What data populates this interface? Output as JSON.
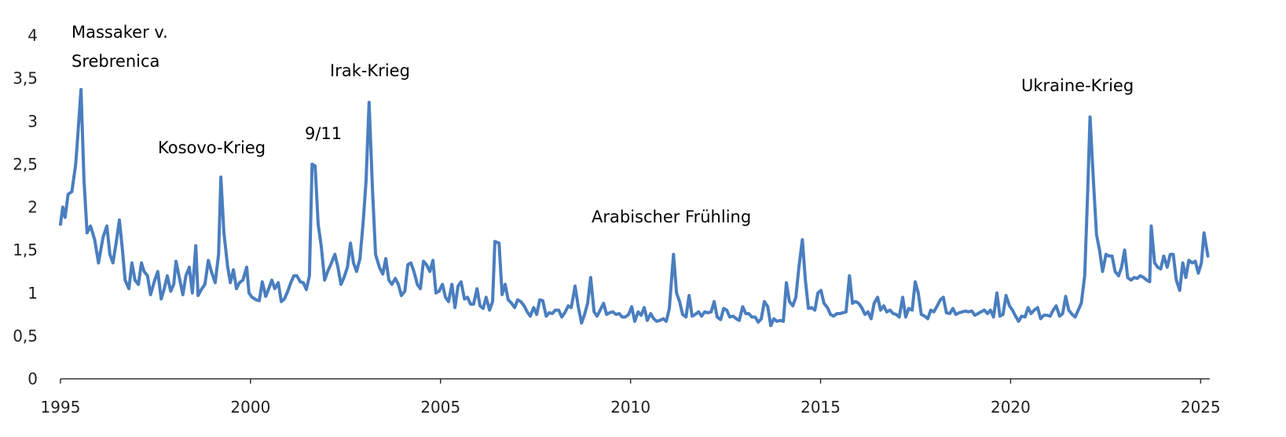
{
  "chart_data": {
    "type": "line",
    "color": "#4a7ebf",
    "annotations": [
      "Massaker v.",
      "Srebrenica",
      "Kosovo-Krieg",
      "9/11",
      "Irak-Krieg",
      "Arabischer Frühling",
      "Ukraine-Krieg"
    ],
    "xlim": [
      1995,
      2025.2
    ],
    "xticks": [
      1995,
      2000,
      2005,
      2010,
      2015,
      2020,
      2025
    ],
    "ylim": [
      0,
      4
    ],
    "yticks": [
      0,
      {
        "value": 0.5,
        "label": "0,5"
      },
      1,
      {
        "value": 1.5,
        "label": "1,5"
      },
      2,
      {
        "value": 2.5,
        "label": "2,5"
      },
      3,
      {
        "value": 3.5,
        "label": "3,5"
      },
      4
    ],
    "x": [
      1995.0,
      1995.06,
      1995.12,
      1995.2,
      1995.3,
      1995.4,
      1995.45,
      1995.54,
      1995.62,
      1995.7,
      1995.79,
      1995.9,
      1996.0,
      1996.12,
      1996.22,
      1996.3,
      1996.38,
      1996.47,
      1996.55,
      1996.63,
      1996.7,
      1996.8,
      1996.88,
      1996.96,
      1997.05,
      1997.13,
      1997.2,
      1997.29,
      1997.37,
      1997.48,
      1997.56,
      1997.65,
      1997.73,
      1997.81,
      1997.9,
      1997.98,
      1998.04,
      1998.14,
      1998.22,
      1998.3,
      1998.39,
      1998.47,
      1998.56,
      1998.62,
      1998.72,
      1998.8,
      1998.89,
      1998.97,
      1999.07,
      1999.16,
      1999.22,
      1999.3,
      1999.4,
      1999.47,
      1999.55,
      1999.63,
      1999.71,
      1999.8,
      1999.9,
      1999.96,
      2000.04,
      2000.15,
      2000.23,
      2000.31,
      2000.4,
      2000.48,
      2000.56,
      2000.64,
      2000.73,
      2000.81,
      2000.89,
      2000.98,
      2001.06,
      2001.14,
      2001.22,
      2001.31,
      2001.39,
      2001.47,
      2001.55,
      2001.62,
      2001.7,
      2001.78,
      2001.86,
      2001.95,
      2002.03,
      2002.13,
      2002.22,
      2002.3,
      2002.38,
      2002.46,
      2002.55,
      2002.63,
      2002.71,
      2002.79,
      2002.88,
      2002.96,
      2003.04,
      2003.12,
      2003.21,
      2003.29,
      2003.39,
      2003.48,
      2003.56,
      2003.64,
      2003.72,
      2003.81,
      2003.89,
      2003.97,
      2004.06,
      2004.14,
      2004.22,
      2004.3,
      2004.39,
      2004.47,
      2004.55,
      2004.63,
      2004.72,
      2004.8,
      2004.88,
      2004.96,
      2005.05,
      2005.13,
      2005.21,
      2005.3,
      2005.38,
      2005.46,
      2005.54,
      2005.63,
      2005.71,
      2005.79,
      2005.87,
      2005.96,
      2006.04,
      2006.12,
      2006.2,
      2006.29,
      2006.37,
      2006.43,
      2006.54,
      2006.62,
      2006.7,
      2006.78,
      2006.87,
      2006.95,
      2007.03,
      2007.11,
      2007.2,
      2007.28,
      2007.36,
      2007.45,
      2007.53,
      2007.61,
      2007.69,
      2007.78,
      2007.86,
      2007.94,
      2008.02,
      2008.11,
      2008.19,
      2008.27,
      2008.36,
      2008.44,
      2008.54,
      2008.62,
      2008.71,
      2008.79,
      2008.87,
      2008.95,
      2009.04,
      2009.12,
      2009.2,
      2009.29,
      2009.37,
      2009.45,
      2009.53,
      2009.62,
      2009.7,
      2009.78,
      2009.86,
      2009.95,
      2010.03,
      2010.11,
      2010.2,
      2010.28,
      2010.36,
      2010.44,
      2010.53,
      2010.61,
      2010.69,
      2010.77,
      2010.86,
      2010.94,
      2011.02,
      2011.13,
      2011.21,
      2011.29,
      2011.37,
      2011.46,
      2011.54,
      2011.62,
      2011.7,
      2011.79,
      2011.87,
      2011.95,
      2012.04,
      2012.12,
      2012.2,
      2012.28,
      2012.37,
      2012.45,
      2012.53,
      2012.61,
      2012.7,
      2012.78,
      2012.86,
      2012.95,
      2013.03,
      2013.11,
      2013.19,
      2013.28,
      2013.36,
      2013.44,
      2013.52,
      2013.61,
      2013.69,
      2013.77,
      2013.85,
      2013.94,
      2014.02,
      2014.1,
      2014.18,
      2014.27,
      2014.35,
      2014.43,
      2014.52,
      2014.6,
      2014.68,
      2014.76,
      2014.85,
      2014.93,
      2015.01,
      2015.09,
      2015.18,
      2015.26,
      2015.34,
      2015.43,
      2015.51,
      2015.59,
      2015.67,
      2015.76,
      2015.84,
      2015.92,
      2016.0,
      2016.08,
      2016.17,
      2016.25,
      2016.33,
      2016.41,
      2016.5,
      2016.58,
      2016.66,
      2016.74,
      2016.83,
      2016.91,
      2016.99,
      2017.07,
      2017.16,
      2017.24,
      2017.32,
      2017.41,
      2017.49,
      2017.57,
      2017.65,
      2017.74,
      2017.82,
      2017.9,
      2017.98,
      2018.07,
      2018.15,
      2018.23,
      2018.31,
      2018.4,
      2018.48,
      2018.56,
      2018.65,
      2018.73,
      2018.81,
      2018.89,
      2018.98,
      2019.06,
      2019.14,
      2019.22,
      2019.31,
      2019.39,
      2019.47,
      2019.55,
      2019.64,
      2019.72,
      2019.8,
      2019.88,
      2019.97,
      2020.05,
      2020.13,
      2020.21,
      2020.29,
      2020.38,
      2020.46,
      2020.54,
      2020.62,
      2020.71,
      2020.79,
      2020.87,
      2020.96,
      2021.04,
      2021.12,
      2021.2,
      2021.29,
      2021.37,
      2021.45,
      2021.53,
      2021.62,
      2021.7,
      2021.78,
      2021.86,
      2021.95,
      2022.03,
      2022.09,
      2022.18,
      2022.26,
      2022.34,
      2022.42,
      2022.51,
      2022.59,
      2022.67,
      2022.75,
      2022.84,
      2022.92,
      2023.0,
      2023.08,
      2023.17,
      2023.25,
      2023.33,
      2023.41,
      2023.5,
      2023.58,
      2023.66,
      2023.7,
      2023.79,
      2023.87,
      2023.95,
      2024.03,
      2024.12,
      2024.2,
      2024.28,
      2024.36,
      2024.45,
      2024.53,
      2024.61,
      2024.69,
      2024.78,
      2024.86,
      2024.94,
      2025.02,
      2025.09,
      2025.19
    ],
    "values": [
      1.8,
      2.0,
      1.88,
      2.15,
      2.18,
      2.5,
      2.8,
      3.37,
      2.3,
      1.7,
      1.78,
      1.62,
      1.35,
      1.65,
      1.78,
      1.45,
      1.35,
      1.6,
      1.85,
      1.5,
      1.15,
      1.05,
      1.35,
      1.15,
      1.1,
      1.35,
      1.25,
      1.2,
      0.98,
      1.15,
      1.25,
      0.93,
      1.05,
      1.2,
      1.02,
      1.1,
      1.37,
      1.15,
      0.98,
      1.2,
      1.3,
      1.0,
      1.55,
      0.97,
      1.05,
      1.1,
      1.38,
      1.25,
      1.12,
      1.45,
      2.35,
      1.7,
      1.3,
      1.12,
      1.27,
      1.05,
      1.12,
      1.15,
      1.3,
      1.0,
      0.95,
      0.92,
      0.91,
      1.13,
      0.96,
      1.05,
      1.15,
      1.05,
      1.12,
      0.9,
      0.93,
      1.02,
      1.12,
      1.2,
      1.2,
      1.13,
      1.12,
      1.04,
      1.2,
      2.5,
      2.48,
      1.8,
      1.55,
      1.15,
      1.25,
      1.35,
      1.45,
      1.3,
      1.1,
      1.18,
      1.3,
      1.58,
      1.35,
      1.25,
      1.4,
      1.8,
      2.3,
      3.22,
      2.2,
      1.45,
      1.3,
      1.22,
      1.4,
      1.15,
      1.1,
      1.17,
      1.1,
      0.97,
      1.02,
      1.33,
      1.35,
      1.25,
      1.1,
      1.05,
      1.37,
      1.33,
      1.25,
      1.38,
      1.0,
      1.02,
      1.1,
      0.95,
      0.9,
      1.1,
      0.83,
      1.08,
      1.13,
      0.93,
      0.95,
      0.87,
      0.87,
      1.05,
      0.85,
      0.82,
      0.95,
      0.8,
      0.9,
      1.6,
      1.58,
      0.98,
      1.1,
      0.92,
      0.88,
      0.83,
      0.92,
      0.9,
      0.85,
      0.78,
      0.73,
      0.83,
      0.75,
      0.92,
      0.91,
      0.73,
      0.77,
      0.76,
      0.8,
      0.8,
      0.72,
      0.77,
      0.85,
      0.83,
      1.08,
      0.85,
      0.65,
      0.75,
      0.88,
      1.18,
      0.78,
      0.73,
      0.8,
      0.88,
      0.75,
      0.77,
      0.78,
      0.75,
      0.76,
      0.72,
      0.72,
      0.75,
      0.84,
      0.67,
      0.78,
      0.74,
      0.83,
      0.68,
      0.76,
      0.7,
      0.67,
      0.68,
      0.7,
      0.67,
      0.82,
      1.45,
      1.0,
      0.9,
      0.75,
      0.72,
      0.97,
      0.73,
      0.75,
      0.78,
      0.73,
      0.78,
      0.77,
      0.78,
      0.9,
      0.72,
      0.69,
      0.82,
      0.8,
      0.72,
      0.73,
      0.7,
      0.68,
      0.84,
      0.76,
      0.76,
      0.72,
      0.72,
      0.66,
      0.7,
      0.9,
      0.84,
      0.62,
      0.7,
      0.67,
      0.68,
      0.67,
      1.12,
      0.9,
      0.85,
      0.95,
      1.3,
      1.62,
      1.15,
      0.82,
      0.83,
      0.8,
      1.0,
      1.03,
      0.88,
      0.83,
      0.75,
      0.73,
      0.76,
      0.76,
      0.77,
      0.78,
      1.2,
      0.88,
      0.9,
      0.88,
      0.83,
      0.75,
      0.78,
      0.7,
      0.88,
      0.95,
      0.8,
      0.85,
      0.78,
      0.8,
      0.76,
      0.75,
      0.72,
      0.95,
      0.72,
      0.82,
      0.8,
      1.13,
      1.0,
      0.75,
      0.73,
      0.7,
      0.8,
      0.78,
      0.85,
      0.92,
      0.95,
      0.77,
      0.76,
      0.82,
      0.75,
      0.77,
      0.78,
      0.79,
      0.78,
      0.79,
      0.74,
      0.76,
      0.78,
      0.8,
      0.76,
      0.8,
      0.72,
      1.0,
      0.73,
      0.75,
      0.97,
      0.85,
      0.8,
      0.73,
      0.67,
      0.73,
      0.72,
      0.83,
      0.76,
      0.8,
      0.83,
      0.7,
      0.74,
      0.74,
      0.73,
      0.8,
      0.85,
      0.73,
      0.76,
      0.96,
      0.8,
      0.75,
      0.72,
      0.8,
      0.88,
      1.2,
      2.2,
      3.05,
      2.3,
      1.68,
      1.5,
      1.25,
      1.45,
      1.43,
      1.43,
      1.25,
      1.2,
      1.3,
      1.5,
      1.18,
      1.15,
      1.18,
      1.17,
      1.2,
      1.18,
      1.15,
      1.13,
      1.78,
      1.35,
      1.3,
      1.28,
      1.43,
      1.3,
      1.45,
      1.45,
      1.15,
      1.03,
      1.35,
      1.18,
      1.38,
      1.35,
      1.37,
      1.23,
      1.35,
      1.7,
      1.43
    ]
  }
}
